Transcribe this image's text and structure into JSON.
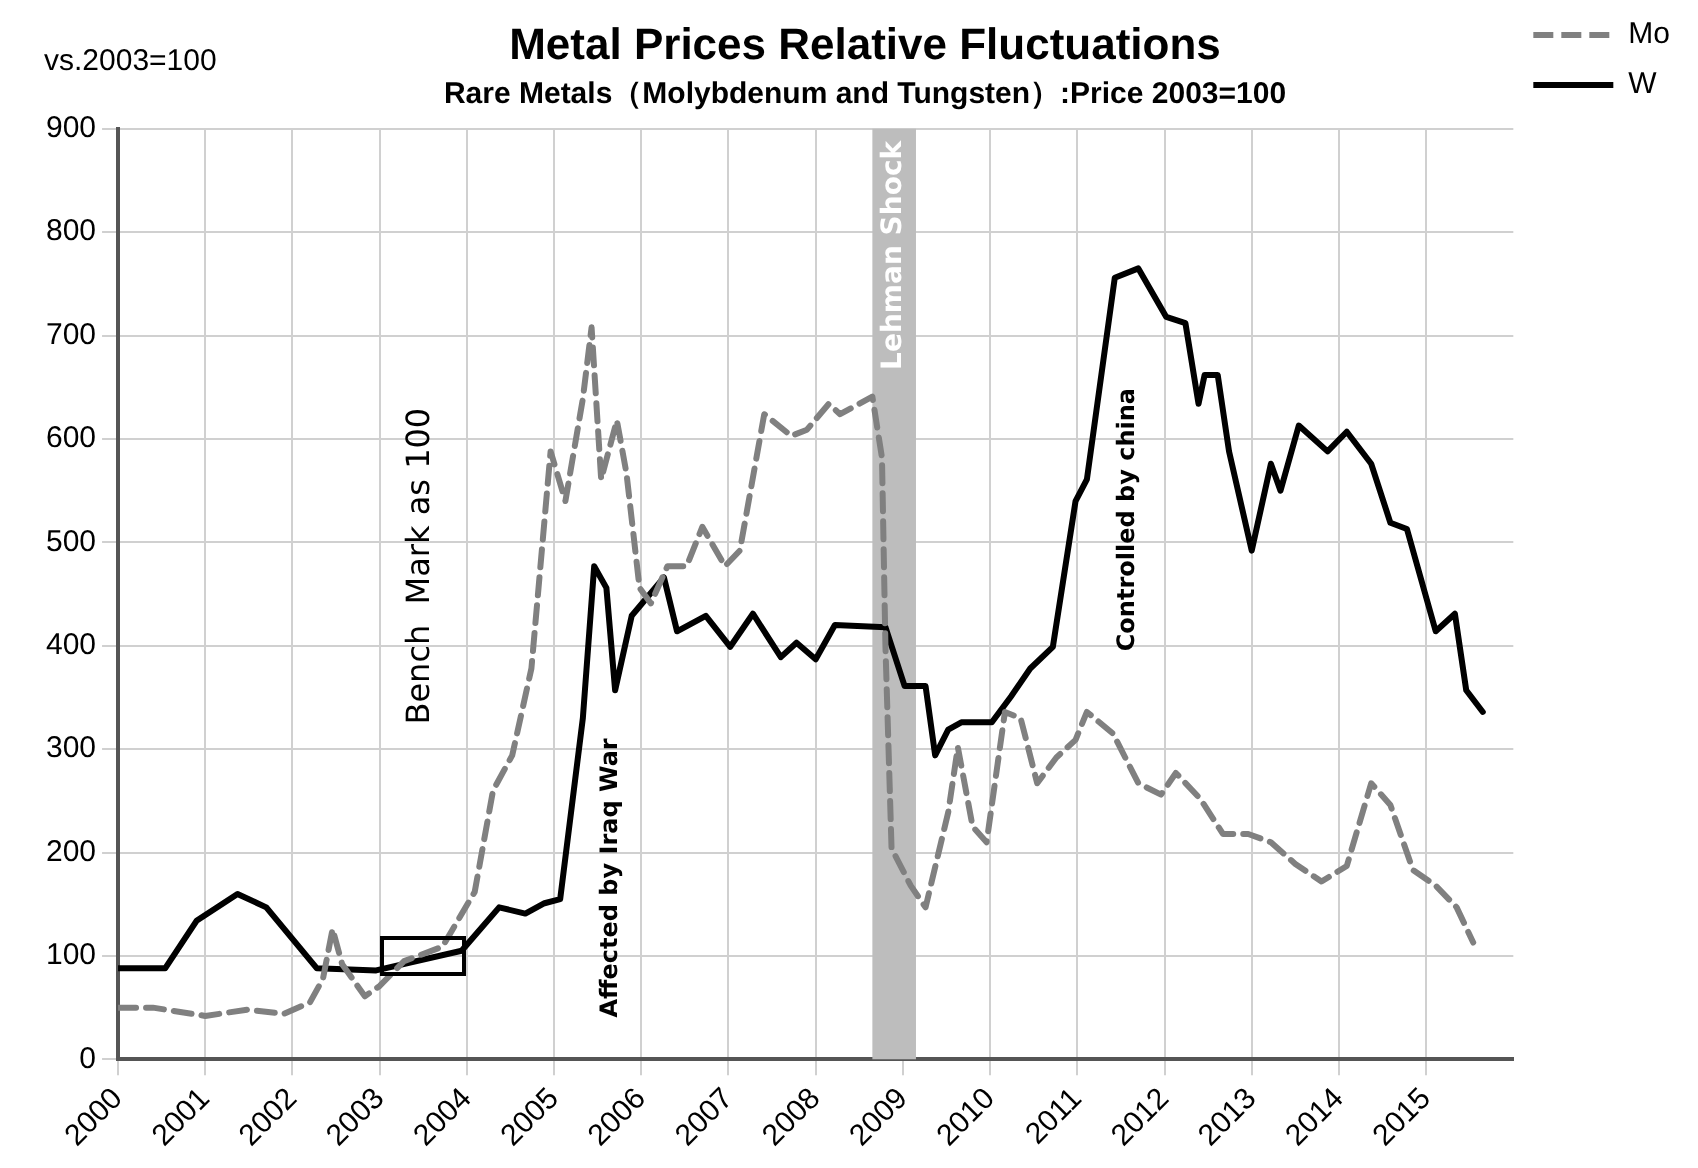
{
  "chart_data": {
    "type": "line",
    "title": "Metal Prices Relative Fluctuations",
    "subtitle": "Rare Metals（Molybdenum and Tungsten）:Price 2003=100",
    "ylabel": "vs.2003=100",
    "xlim": [
      2000,
      2016
    ],
    "xticks": [
      2000,
      2001,
      2002,
      2003,
      2004,
      2005,
      2006,
      2007,
      2008,
      2009,
      2010,
      2011,
      2012,
      2013,
      2014,
      2015
    ],
    "ylim": [
      0,
      900
    ],
    "yticks": [
      0,
      100,
      200,
      300,
      400,
      500,
      600,
      700,
      800,
      900
    ],
    "grid": true,
    "legend": "top right",
    "marker": "none",
    "series": [
      {
        "name": "Mo",
        "color": "#808080",
        "line_style": "dashed",
        "x": [
          2000,
          2000.4,
          2001.0,
          2001.48,
          2001.9,
          2002.2,
          2002.35,
          2002.46,
          2002.57,
          2002.83,
          2003.0,
          2003.28,
          2003.72,
          2004.09,
          2004.3,
          2004.52,
          2004.74,
          2004.96,
          2005.13,
          2005.33,
          2005.43,
          2005.54,
          2005.72,
          2005.83,
          2005.98,
          2006.11,
          2006.3,
          2006.52,
          2006.7,
          2006.96,
          2007.13,
          2007.41,
          2007.72,
          2007.9,
          2008.15,
          2008.28,
          2008.65,
          2008.76,
          2008.8,
          2008.87,
          2009.09,
          2009.26,
          2009.52,
          2009.63,
          2009.8,
          2009.96,
          2010.17,
          2010.35,
          2010.54,
          2010.76,
          2010.98,
          2011.11,
          2011.41,
          2011.7,
          2011.96,
          2012.13,
          2012.41,
          2012.67,
          2012.96,
          2013.22,
          2013.5,
          2013.8,
          2014.09,
          2014.37,
          2014.59,
          2014.85,
          2015.11,
          2015.35,
          2015.54
        ],
        "values": [
          50,
          50,
          42,
          48,
          44,
          55,
          78,
          126,
          92,
          61,
          71,
          95,
          109,
          162,
          260,
          294,
          378,
          588,
          540,
          639,
          708,
          561,
          618,
          567,
          456,
          441,
          477,
          477,
          515,
          477,
          492,
          624,
          603,
          609,
          634,
          624,
          641,
          582,
          399,
          204,
          168,
          147,
          239,
          302,
          225,
          210,
          336,
          330,
          267,
          292,
          309,
          336,
          315,
          267,
          256,
          277,
          252,
          218,
          218,
          210,
          189,
          172,
          187,
          267,
          246,
          183,
          168,
          147,
          113
        ]
      },
      {
        "name": "W",
        "color": "#000000",
        "line_style": "solid",
        "x": [
          2000,
          2000.54,
          2000.9,
          2001.37,
          2001.7,
          2002.28,
          2002.96,
          2003.94,
          2004.37,
          2004.67,
          2004.89,
          2005.07,
          2005.33,
          2005.46,
          2005.6,
          2005.7,
          2005.89,
          2006.26,
          2006.41,
          2006.74,
          2007.02,
          2007.28,
          2007.6,
          2007.78,
          2008.0,
          2008.22,
          2008.8,
          2009.02,
          2009.26,
          2009.37,
          2009.52,
          2009.67,
          2010.02,
          2010.24,
          2010.46,
          2010.72,
          2010.98,
          2011.11,
          2011.43,
          2011.7,
          2012.02,
          2012.24,
          2012.39,
          2012.46,
          2012.61,
          2012.74,
          2013.0,
          2013.22,
          2013.33,
          2013.54,
          2013.87,
          2014.09,
          2014.37,
          2014.59,
          2014.78,
          2015.11,
          2015.33,
          2015.46,
          2015.65
        ],
        "values": [
          88,
          88,
          134,
          160,
          147,
          88,
          86,
          105,
          147,
          141,
          151,
          155,
          330,
          477,
          456,
          357,
          429,
          466,
          414,
          429,
          399,
          431,
          389,
          403,
          387,
          420,
          418,
          361,
          361,
          294,
          319,
          326,
          326,
          351,
          378,
          399,
          540,
          561,
          756,
          765,
          718,
          712,
          634,
          662,
          662,
          588,
          492,
          576,
          550,
          613,
          588,
          607,
          576,
          519,
          513,
          414,
          431,
          357,
          336
        ]
      }
    ],
    "bands": [
      {
        "axis": "x",
        "from": 2008.65,
        "to": 2009.15,
        "label": "Lehman Shock",
        "color": "#bdbdbd"
      }
    ],
    "annotations": [
      "Bench  Mark as 100",
      "Affected by Iraq War",
      "Controlled by china"
    ]
  }
}
